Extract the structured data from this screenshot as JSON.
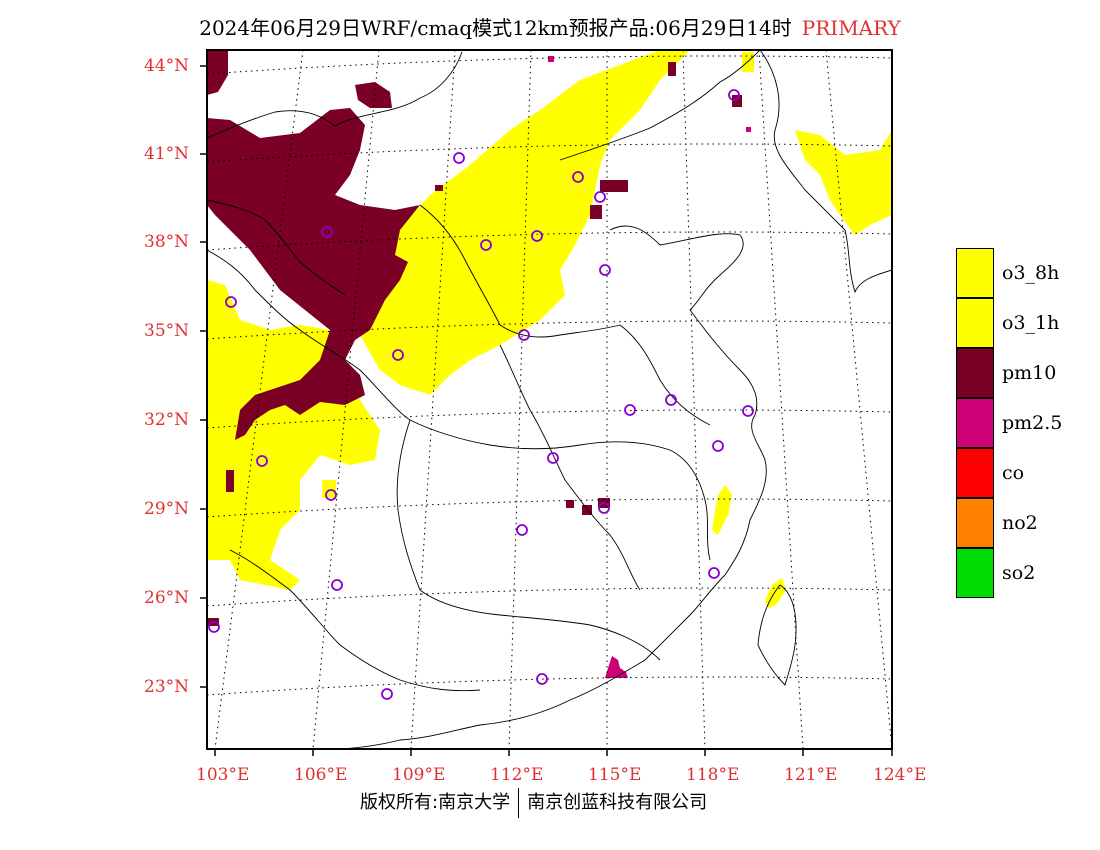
{
  "title": {
    "main": "2024年06月29日WRF/cmaq模式12km预报产品:06月29日14时",
    "tag": "PRIMARY"
  },
  "axes": {
    "lat_labels": [
      "44°N",
      "41°N",
      "38°N",
      "35°N",
      "32°N",
      "29°N",
      "26°N",
      "23°N"
    ],
    "lon_labels": [
      "103°E",
      "106°E",
      "109°E",
      "112°E",
      "115°E",
      "118°E",
      "121°E",
      "124°E"
    ]
  },
  "legend": [
    {
      "label": "o3_8h",
      "color": "#ffff00"
    },
    {
      "label": "o3_1h",
      "color": "#ffff00"
    },
    {
      "label": "pm10",
      "color": "#7a0026"
    },
    {
      "label": "pm2.5",
      "color": "#cc0077"
    },
    {
      "label": "co",
      "color": "#ff0000"
    },
    {
      "label": "no2",
      "color": "#ff7f00"
    },
    {
      "label": "so2",
      "color": "#00dd00"
    }
  ],
  "footer": {
    "left": "版权所有:南京大学",
    "right": "南京创蓝科技有限公司"
  },
  "colors": {
    "o3": "#ffff00",
    "pm10": "#7a0026",
    "pm25": "#cc0077",
    "label_red": "#e03030",
    "station": "#8800cc"
  }
}
